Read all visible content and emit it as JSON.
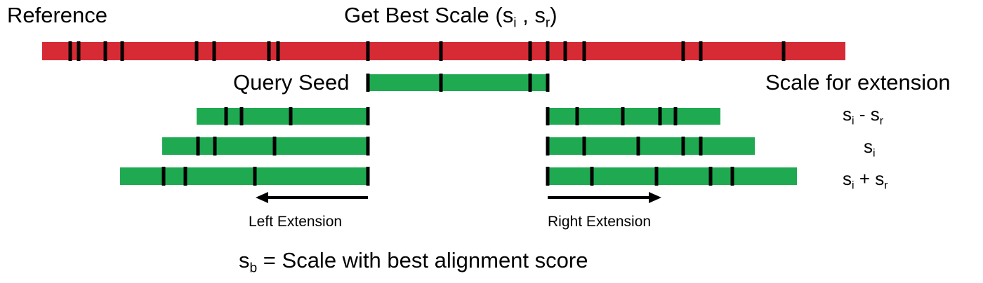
{
  "labels": {
    "reference": "Reference",
    "title_prefix": "Get Best Scale (s",
    "title_i": "i",
    "title_mid": " , s",
    "title_r": "r",
    "title_suffix": ")",
    "query_seed": "Query Seed",
    "scale_for_extension": "Scale for extension",
    "left_extension": "Left Extension",
    "right_extension": "Right Extension",
    "footer_s": "s",
    "footer_b": "b",
    "footer_rest": " = Scale with best alignment score"
  },
  "scales": [
    {
      "s1": "s",
      "sub1": "i",
      "op": " - ",
      "s2": "s",
      "sub2": "r"
    },
    {
      "s1": "s",
      "sub1": "i",
      "op": "",
      "s2": "",
      "sub2": ""
    },
    {
      "s1": "s",
      "sub1": "i",
      "op": " + ",
      "s2": "s",
      "sub2": "r"
    }
  ],
  "colors": {
    "reference": "#d62b35",
    "seed": "#1faa52",
    "extension": "#1faa52",
    "marker": "#000000"
  }
}
